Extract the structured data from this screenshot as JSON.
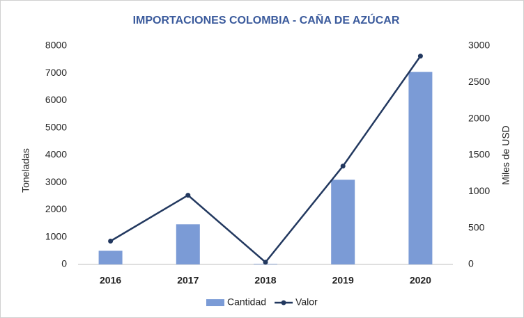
{
  "chart_data": {
    "type": "combo",
    "title": "IMPORTACIONES COLOMBIA - CAÑA DE AZÚCAR",
    "categories": [
      "2016",
      "2017",
      "2018",
      "2019",
      "2020"
    ],
    "y_label": "Toneladas",
    "y2_label": "Miles de USD",
    "ylim": [
      0,
      8000
    ],
    "yticks": [
      0,
      1000,
      2000,
      3000,
      4000,
      5000,
      6000,
      7000,
      8000
    ],
    "y2lim": [
      0,
      3000
    ],
    "y2ticks": [
      0,
      500,
      1000,
      1500,
      2000,
      2500,
      3000
    ],
    "grid": false,
    "legend": "bottom",
    "series": [
      {
        "name": "Cantidad",
        "type": "bar",
        "color": "#7b9bd6",
        "values": [
          500,
          1470,
          20,
          3100,
          7050
        ]
      },
      {
        "name": "Valor",
        "type": "line",
        "axis": "y2",
        "color": "#22385f",
        "values": [
          320,
          950,
          30,
          1350,
          2860
        ]
      }
    ]
  }
}
